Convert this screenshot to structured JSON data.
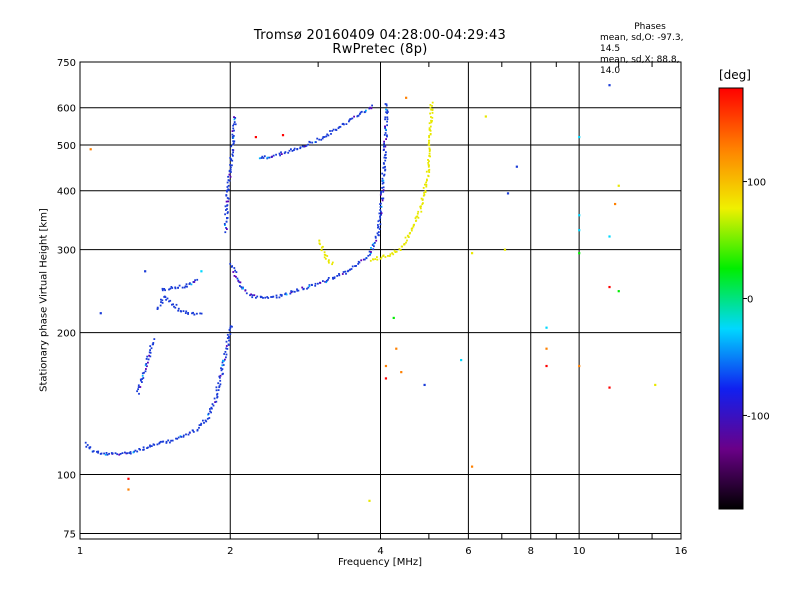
{
  "title": "Tromsø 20160409 04:28:00-04:29:43",
  "subtitle": "RwPretec (8p)",
  "stats": {
    "heading": "Phases",
    "line_o": "mean, sd,O: -97.3, 14.5",
    "line_x": "mean, sd,X:  88.8, 14.0"
  },
  "chart_data": {
    "type": "scatter",
    "title": "Tromsø 20160409 04:28:00-04:29:43",
    "subtitle": "RwPretec (8p)",
    "xlabel": "Frequency [MHz]",
    "ylabel": "Stationary phase Virtual Height [km]",
    "x_scale": "log",
    "y_scale": "log",
    "xlim": [
      1,
      16
    ],
    "ylim": [
      73,
      750
    ],
    "x_ticks": [
      1,
      2,
      4,
      6,
      8,
      10,
      16
    ],
    "x_tick_labels": [
      "1",
      "2",
      "4",
      "6",
      "8",
      "10",
      "16"
    ],
    "y_ticks": [
      75,
      100,
      200,
      300,
      400,
      500,
      600,
      750
    ],
    "y_tick_labels": [
      "75",
      "100",
      "200",
      "300",
      "400",
      "500",
      "600",
      "750"
    ],
    "grid": true,
    "colorbar": {
      "label": "[deg]",
      "range": [
        -180,
        180
      ],
      "ticks": [
        100,
        0,
        -100
      ],
      "tick_labels": [
        "100",
        "0",
        "-100"
      ],
      "colors": [
        "#000000",
        "#6a0088",
        "#1020f0",
        "#00d8ff",
        "#00ee00",
        "#f0f000",
        "#ff8000",
        "#ff0000"
      ]
    },
    "series": [
      {
        "mode": "O",
        "color": "#1a3cd8",
        "phase": -97.3,
        "segments": [
          [
            [
              1.02,
              117
            ],
            [
              1.05,
              113
            ],
            [
              1.1,
              111
            ],
            [
              1.2,
              111
            ],
            [
              1.3,
              113
            ],
            [
              1.4,
              116
            ],
            [
              1.5,
              118
            ],
            [
              1.6,
              121
            ],
            [
              1.7,
              125
            ],
            [
              1.8,
              133
            ],
            [
              1.86,
              145
            ],
            [
              1.9,
              160
            ],
            [
              1.95,
              180
            ],
            [
              2.0,
              210
            ]
          ],
          [
            [
              1.3,
              150
            ],
            [
              1.33,
              162
            ],
            [
              1.36,
              175
            ],
            [
              1.4,
              195
            ]
          ],
          [
            [
              1.42,
              225
            ],
            [
              1.47,
              240
            ],
            [
              1.52,
              232
            ],
            [
              1.58,
              224
            ],
            [
              1.66,
              220
            ],
            [
              1.75,
              219
            ]
          ],
          [
            [
              1.45,
              248
            ],
            [
              1.55,
              250
            ],
            [
              1.65,
              253
            ],
            [
              1.72,
              262
            ]
          ],
          [
            [
              2.0,
              280
            ],
            [
              2.1,
              250
            ],
            [
              2.2,
              240
            ],
            [
              2.4,
              238
            ],
            [
              2.6,
              243
            ],
            [
              2.8,
              250
            ],
            [
              3.0,
              256
            ],
            [
              3.2,
              262
            ],
            [
              3.4,
              270
            ],
            [
              3.6,
              282
            ],
            [
              3.8,
              295
            ],
            [
              3.95,
              330
            ],
            [
              4.03,
              410
            ],
            [
              4.08,
              520
            ],
            [
              4.1,
              620
            ]
          ],
          [
            [
              2.28,
              470
            ],
            [
              2.5,
              480
            ],
            [
              2.8,
              500
            ],
            [
              3.1,
              525
            ],
            [
              3.4,
              560
            ],
            [
              3.7,
              590
            ],
            [
              3.85,
              610
            ]
          ],
          [
            [
              1.95,
              330
            ],
            [
              1.96,
              380
            ],
            [
              1.98,
              420
            ],
            [
              2.0,
              470
            ],
            [
              2.02,
              520
            ],
            [
              2.04,
              580
            ]
          ]
        ]
      },
      {
        "mode": "X",
        "color": "#e8e800",
        "phase": 88.8,
        "segments": [
          [
            [
              3.0,
              315
            ],
            [
              3.05,
              300
            ],
            [
              3.1,
              290
            ],
            [
              3.15,
              283
            ],
            [
              3.2,
              281
            ]
          ],
          [
            [
              3.8,
              286
            ],
            [
              4.0,
              290
            ],
            [
              4.2,
              295
            ],
            [
              4.4,
              305
            ],
            [
              4.6,
              330
            ],
            [
              4.8,
              370
            ],
            [
              4.95,
              430
            ],
            [
              5.0,
              500
            ],
            [
              5.03,
              560
            ],
            [
              5.05,
              625
            ]
          ]
        ]
      }
    ],
    "scatter_points": [
      {
        "x": 1.05,
        "y": 490,
        "c": "#ff8000"
      },
      {
        "x": 1.1,
        "y": 220,
        "c": "#1a3cd8"
      },
      {
        "x": 1.25,
        "y": 98,
        "c": "#ff0000"
      },
      {
        "x": 1.25,
        "y": 93,
        "c": "#ff8000"
      },
      {
        "x": 1.35,
        "y": 270,
        "c": "#1a3cd8"
      },
      {
        "x": 1.75,
        "y": 270,
        "c": "#00d8ff"
      },
      {
        "x": 2.25,
        "y": 520,
        "c": "#ff0000"
      },
      {
        "x": 2.55,
        "y": 525,
        "c": "#ff0000"
      },
      {
        "x": 3.8,
        "y": 88,
        "c": "#e8e800"
      },
      {
        "x": 4.1,
        "y": 170,
        "c": "#ff8000"
      },
      {
        "x": 4.1,
        "y": 160,
        "c": "#ff0000"
      },
      {
        "x": 4.25,
        "y": 215,
        "c": "#00ee00"
      },
      {
        "x": 4.3,
        "y": 185,
        "c": "#ff8000"
      },
      {
        "x": 4.4,
        "y": 165,
        "c": "#ff8000"
      },
      {
        "x": 4.5,
        "y": 630,
        "c": "#ff8000"
      },
      {
        "x": 4.9,
        "y": 155,
        "c": "#1a3cd8"
      },
      {
        "x": 5.8,
        "y": 175,
        "c": "#00d8ff"
      },
      {
        "x": 6.1,
        "y": 295,
        "c": "#e8e800"
      },
      {
        "x": 6.1,
        "y": 104,
        "c": "#ff8000"
      },
      {
        "x": 6.5,
        "y": 575,
        "c": "#e8e800"
      },
      {
        "x": 7.1,
        "y": 300,
        "c": "#e8e800"
      },
      {
        "x": 7.2,
        "y": 395,
        "c": "#1a3cd8"
      },
      {
        "x": 7.5,
        "y": 450,
        "c": "#1a3cd8"
      },
      {
        "x": 8.6,
        "y": 205,
        "c": "#00d8ff"
      },
      {
        "x": 8.6,
        "y": 185,
        "c": "#ff8000"
      },
      {
        "x": 8.6,
        "y": 170,
        "c": "#ff0000"
      },
      {
        "x": 10.0,
        "y": 520,
        "c": "#00d8ff"
      },
      {
        "x": 10.0,
        "y": 355,
        "c": "#00d8ff"
      },
      {
        "x": 10.0,
        "y": 330,
        "c": "#00d8ff"
      },
      {
        "x": 10.0,
        "y": 295,
        "c": "#00ee00"
      },
      {
        "x": 10.0,
        "y": 170,
        "c": "#ff8000"
      },
      {
        "x": 11.5,
        "y": 670,
        "c": "#1a3cd8"
      },
      {
        "x": 11.5,
        "y": 320,
        "c": "#00d8ff"
      },
      {
        "x": 11.5,
        "y": 250,
        "c": "#ff0000"
      },
      {
        "x": 11.5,
        "y": 153,
        "c": "#ff0000"
      },
      {
        "x": 11.8,
        "y": 375,
        "c": "#ff8000"
      },
      {
        "x": 12.0,
        "y": 410,
        "c": "#e8e800"
      },
      {
        "x": 12.0,
        "y": 245,
        "c": "#00ee00"
      },
      {
        "x": 14.2,
        "y": 155,
        "c": "#e8e800"
      }
    ]
  }
}
